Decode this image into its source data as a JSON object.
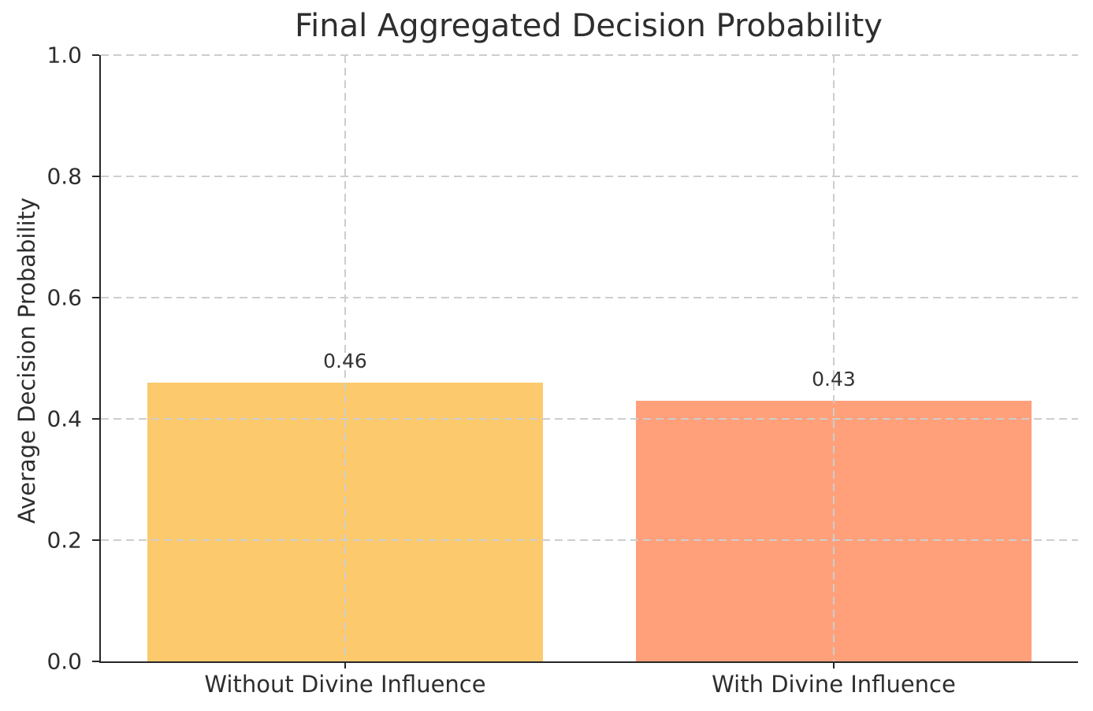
{
  "title": "Final Aggregated Decision Probability",
  "chart_data": {
    "type": "bar",
    "title": "Final Aggregated Decision Probability",
    "xlabel": "",
    "ylabel": "Average Decision Probability",
    "categories": [
      "Without Divine Influence",
      "With Divine Influence"
    ],
    "values": [
      0.46,
      0.43
    ],
    "bar_labels": [
      "0.46",
      "0.43"
    ],
    "bar_colors": [
      "#fcc96d",
      "#ffa07a"
    ],
    "ylim": [
      0.0,
      1.0
    ],
    "yticks": [
      0.0,
      0.2,
      0.4,
      0.6,
      0.8,
      1.0
    ],
    "ytick_labels": [
      "0.0",
      "0.2",
      "0.4",
      "0.6",
      "0.8",
      "1.0"
    ],
    "grid": "dashed horizontal and vertical gridlines, drawn above bars",
    "legend": "none",
    "colors": {
      "background": "#ffffff",
      "text": "#2e2e2e",
      "axis_spine": "#262626",
      "gridline": "#cdcdcd"
    }
  }
}
